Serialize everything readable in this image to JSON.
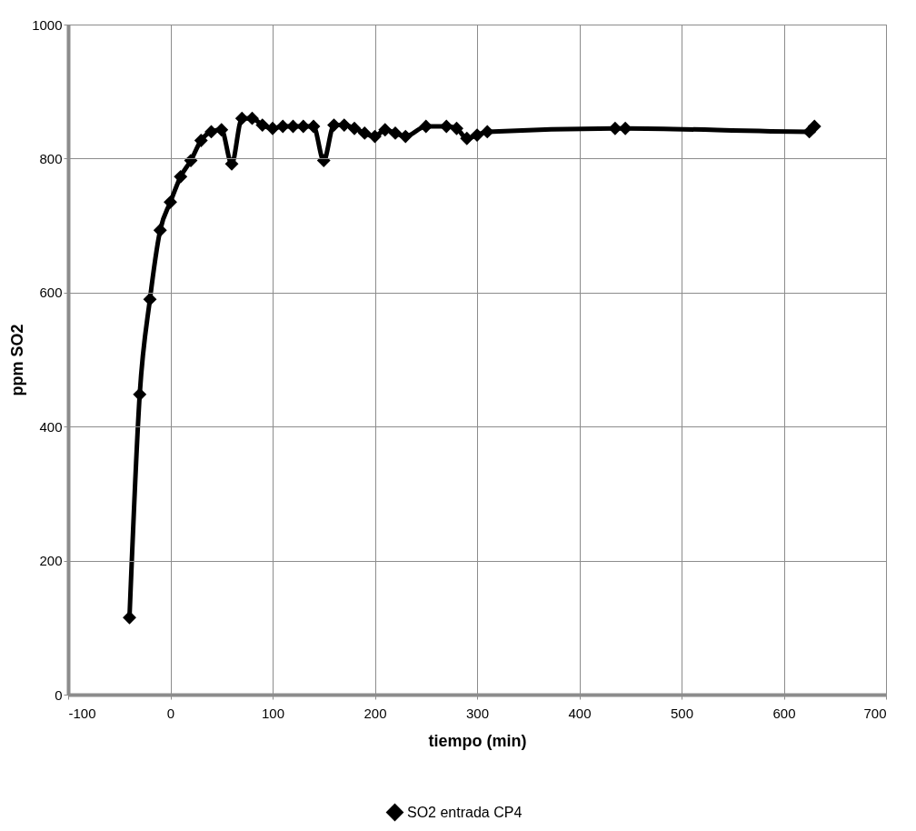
{
  "chart_data": {
    "type": "line",
    "xlabel": "tiempo (min)",
    "ylabel": "ppm SO2",
    "x": [
      -40,
      -30,
      -20,
      -10,
      0,
      10,
      20,
      30,
      40,
      50,
      60,
      70,
      80,
      90,
      100,
      110,
      120,
      130,
      140,
      150,
      160,
      170,
      180,
      190,
      200,
      210,
      220,
      230,
      250,
      270,
      280,
      290,
      300,
      310,
      435,
      445,
      625,
      630
    ],
    "series": [
      {
        "name": "SO2 entrada CP4",
        "color": "#000000",
        "values": [
          115,
          448,
          590,
          693,
          735,
          773,
          797,
          827,
          840,
          843,
          792,
          860,
          860,
          850,
          845,
          848,
          848,
          848,
          848,
          797,
          850,
          850,
          845,
          838,
          833,
          843,
          838,
          833,
          848,
          848,
          845,
          830,
          835,
          840,
          845,
          845,
          840,
          848
        ]
      }
    ],
    "xlim": [
      -100,
      700
    ],
    "xticks": [
      -100,
      0,
      100,
      200,
      300,
      400,
      500,
      600,
      700
    ],
    "ylim": [
      0,
      1000
    ],
    "yticks": [
      0,
      200,
      400,
      600,
      800,
      1000
    ],
    "grid": true,
    "legend": "bottom",
    "marker": "diamond",
    "line_style": "solid"
  }
}
